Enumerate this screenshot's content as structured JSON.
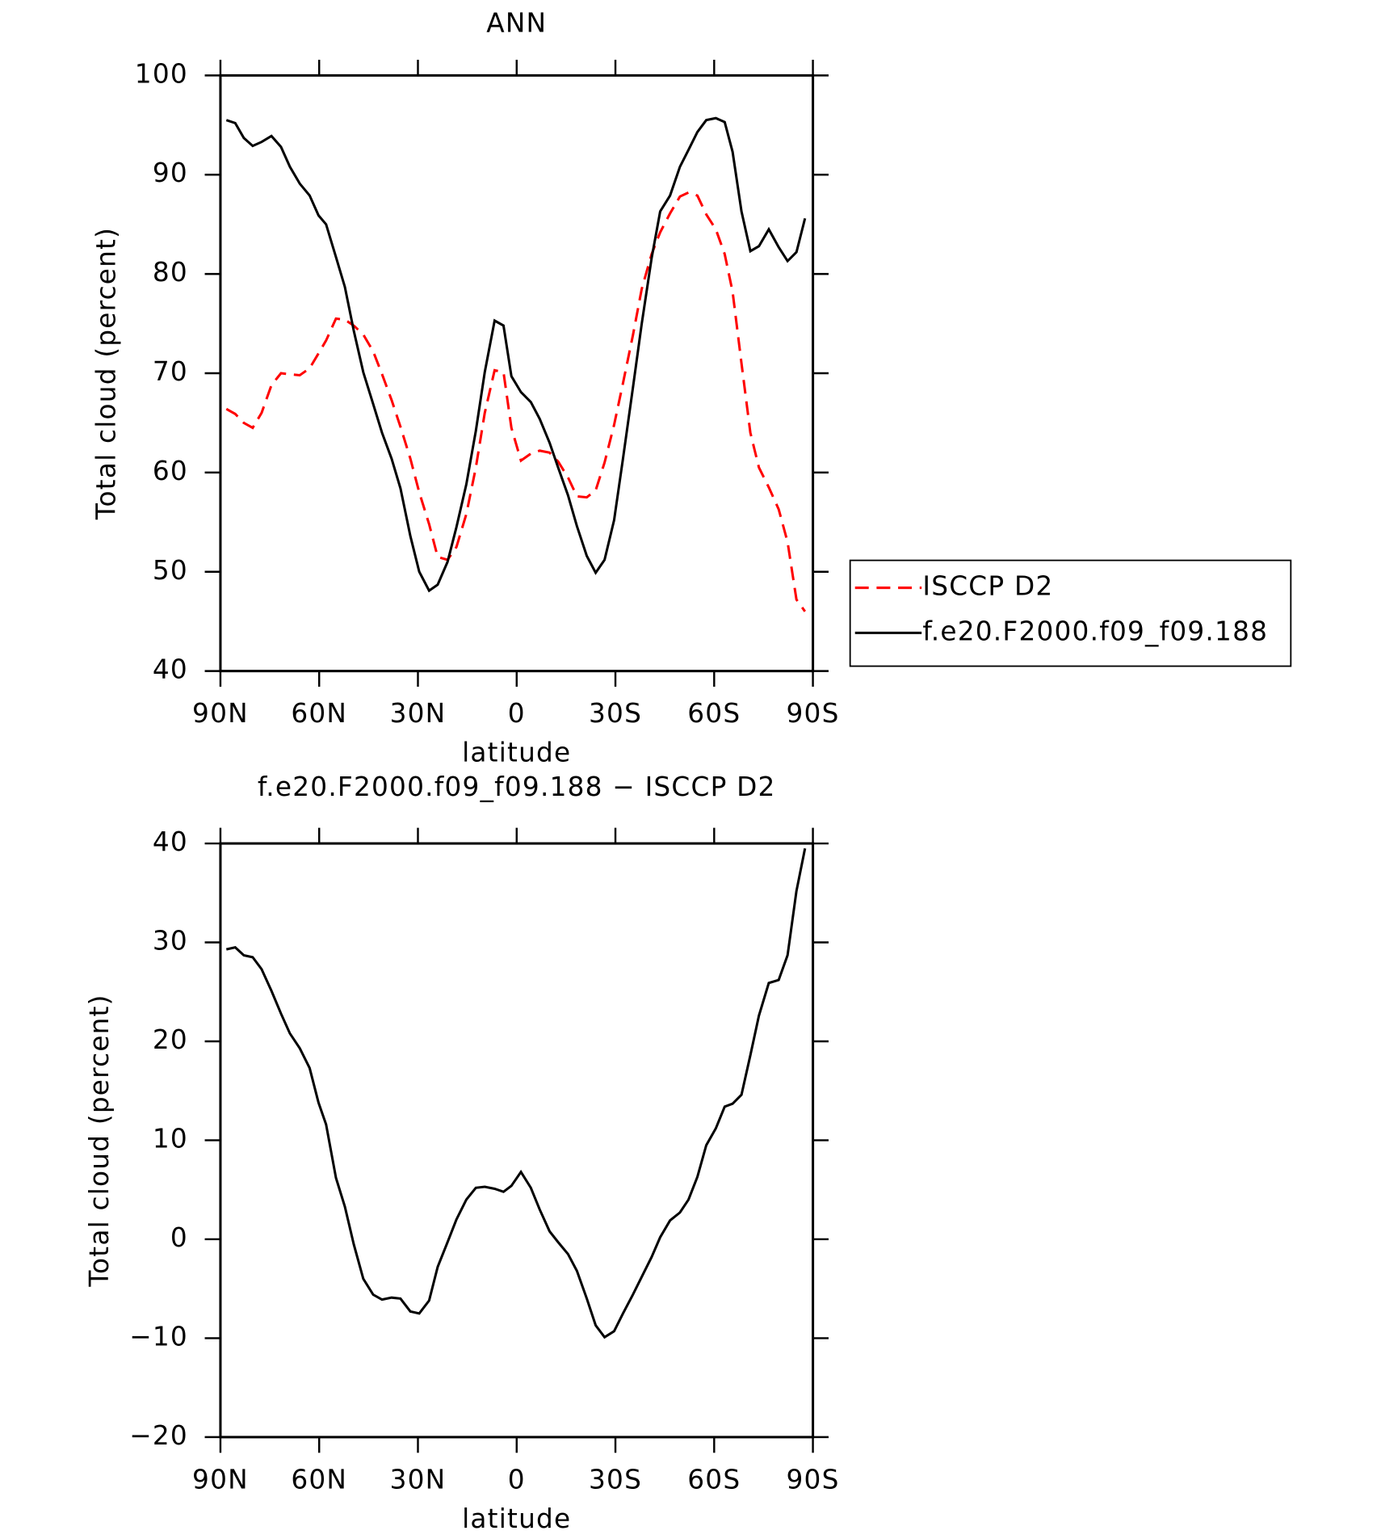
{
  "chart_data": [
    {
      "type": "line",
      "title": "ANN",
      "xlabel": "latitude",
      "ylabel": "Total cloud (percent)",
      "x": [
        88.2,
        85.5,
        82.9,
        80.2,
        77.5,
        74.5,
        71.6,
        68.9,
        65.9,
        62.9,
        60.2,
        57.9,
        54.9,
        52.2,
        49.5,
        46.6,
        43.6,
        40.9,
        38.0,
        35.3,
        32.3,
        29.6,
        26.6,
        24.0,
        21.0,
        18.3,
        15.3,
        12.4,
        9.7,
        6.7,
        4.0,
        1.6,
        -1.3,
        -4.3,
        -7.0,
        -10.0,
        -12.6,
        -15.6,
        -18.3,
        -21.3,
        -24.0,
        -26.7,
        -29.6,
        -32.3,
        -35.3,
        -38.0,
        -41.0,
        -43.6,
        -46.6,
        -49.6,
        -52.2,
        -54.9,
        -57.6,
        -60.5,
        -63.2,
        -65.6,
        -68.3,
        -71.0,
        -73.6,
        -76.6,
        -79.6,
        -82.3,
        -85.0,
        -87.6
      ],
      "series": [
        {
          "name": "ISCCP D2",
          "color": "#ff0000",
          "dashed": true,
          "values": [
            66.4,
            65.9,
            65.0,
            64.5,
            66.0,
            68.8,
            70.0,
            69.9,
            69.8,
            70.5,
            72.0,
            73.3,
            75.5,
            75.4,
            74.8,
            73.9,
            72.2,
            69.9,
            67.3,
            64.6,
            61.4,
            58.0,
            54.8,
            51.5,
            51.2,
            52.5,
            55.8,
            60.5,
            66.0,
            70.3,
            70.1,
            64.5,
            61.2,
            61.9,
            62.2,
            62.0,
            61.1,
            59.5,
            57.6,
            57.5,
            58.2,
            61.0,
            64.8,
            69.0,
            73.8,
            78.5,
            82.0,
            84.2,
            86.1,
            87.8,
            88.2,
            87.9,
            86.0,
            84.5,
            82.0,
            78.2,
            71.0,
            64.0,
            60.5,
            58.5,
            56.3,
            53.0,
            47.2,
            46.0
          ]
        },
        {
          "name": "f.e20.F2000.f09_f09.188",
          "color": "#000000",
          "dashed": false,
          "values": [
            95.5,
            95.2,
            93.7,
            92.9,
            93.3,
            93.9,
            92.8,
            90.8,
            89.1,
            87.9,
            85.9,
            85.0,
            81.7,
            78.7,
            74.3,
            70.1,
            66.9,
            64.0,
            61.4,
            58.4,
            53.6,
            50.0,
            48.1,
            48.7,
            51.0,
            54.5,
            58.8,
            64.2,
            70.1,
            75.3,
            74.8,
            69.7,
            68.1,
            67.1,
            65.4,
            63.0,
            60.5,
            57.7,
            54.6,
            51.6,
            49.9,
            51.2,
            55.2,
            61.4,
            68.5,
            75.0,
            81.6,
            86.3,
            87.9,
            90.8,
            92.5,
            94.3,
            95.5,
            95.7,
            95.3,
            92.3,
            86.3,
            82.3,
            82.8,
            84.5,
            82.7,
            81.3,
            82.2,
            85.6
          ]
        }
      ],
      "xlim": [
        90,
        -90
      ],
      "xticks": [
        {
          "value": 90,
          "label": "90N"
        },
        {
          "value": 60,
          "label": "60N"
        },
        {
          "value": 30,
          "label": "30N"
        },
        0,
        {
          "value": -30,
          "label": "30S"
        },
        {
          "value": -60,
          "label": "60S"
        },
        {
          "value": -90,
          "label": "90S"
        }
      ],
      "ylim": [
        40,
        100
      ],
      "yticks": [
        40,
        50,
        60,
        70,
        80,
        90,
        100
      ],
      "legend": "right"
    },
    {
      "type": "line",
      "title": "f.e20.F2000.f09_f09.188 − ISCCP D2",
      "xlabel": "latitude",
      "ylabel": "Total cloud (percent)",
      "x": [
        88.2,
        85.5,
        82.9,
        80.2,
        77.5,
        74.5,
        71.6,
        68.9,
        65.9,
        62.9,
        60.2,
        57.9,
        54.9,
        52.2,
        49.5,
        46.6,
        43.6,
        40.9,
        38.0,
        35.3,
        32.3,
        29.6,
        26.6,
        24.0,
        21.0,
        18.3,
        15.3,
        12.4,
        9.7,
        6.7,
        4.0,
        1.6,
        -1.3,
        -4.3,
        -7.0,
        -10.0,
        -12.6,
        -15.6,
        -18.3,
        -21.3,
        -24.0,
        -26.7,
        -29.6,
        -32.3,
        -35.3,
        -38.0,
        -41.0,
        -43.6,
        -46.6,
        -49.6,
        -52.2,
        -54.9,
        -57.6,
        -60.5,
        -63.2,
        -65.6,
        -68.3,
        -71.0,
        -73.6,
        -76.6,
        -79.6,
        -82.3,
        -85.0,
        -87.6
      ],
      "values": [
        29.3,
        29.5,
        28.7,
        28.5,
        27.3,
        25.1,
        22.8,
        20.8,
        19.3,
        17.3,
        13.8,
        11.6,
        6.2,
        3.3,
        -0.5,
        -4.0,
        -5.6,
        -6.1,
        -5.9,
        -6.0,
        -7.3,
        -7.5,
        -6.2,
        -2.8,
        -0.3,
        2.0,
        4.0,
        5.2,
        5.3,
        5.1,
        4.8,
        5.4,
        6.8,
        5.2,
        3.0,
        0.8,
        -0.3,
        -1.5,
        -3.2,
        -6.0,
        -8.7,
        -9.9,
        -9.3,
        -7.5,
        -5.6,
        -3.8,
        -1.8,
        0.2,
        1.9,
        2.7,
        4.0,
        6.3,
        9.5,
        11.2,
        13.4,
        13.7,
        14.6,
        18.6,
        22.6,
        25.9,
        26.2,
        28.7,
        35.2,
        39.5
      ],
      "color": "#000000",
      "xlim": [
        90,
        -90
      ],
      "xticks": [
        {
          "value": 90,
          "label": "90N"
        },
        {
          "value": 60,
          "label": "60N"
        },
        {
          "value": 30,
          "label": "30N"
        },
        0,
        {
          "value": -30,
          "label": "30S"
        },
        {
          "value": -60,
          "label": "60S"
        },
        {
          "value": -90,
          "label": "90S"
        }
      ],
      "ylim": [
        -20,
        40
      ],
      "yticks": [
        {
          "value": -20,
          "label": "−20"
        },
        {
          "value": -10,
          "label": "−10"
        },
        0,
        10,
        20,
        30,
        40
      ]
    }
  ]
}
